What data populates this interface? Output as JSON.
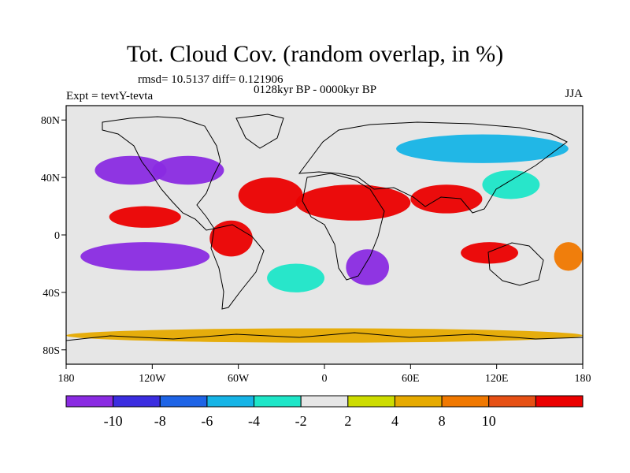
{
  "title": "Tot. Cloud Cov. (random overlap, in %)",
  "stats": "rmsd= 10.5137 diff= 0.121906",
  "period": "0128kyr BP - 0000kyr BP",
  "experiment": "Expt = tevtY-tevta",
  "season": "JJA",
  "y_ticks": [
    {
      "label": "80N",
      "lat": 80
    },
    {
      "label": "40N",
      "lat": 40
    },
    {
      "label": "0",
      "lat": 0
    },
    {
      "label": "40S",
      "lat": -40
    },
    {
      "label": "80S",
      "lat": -80
    }
  ],
  "x_ticks": [
    {
      "label": "180",
      "lon": -180
    },
    {
      "label": "120W",
      "lon": -120
    },
    {
      "label": "60W",
      "lon": -60
    },
    {
      "label": "0",
      "lon": 0
    },
    {
      "label": "60E",
      "lon": 60
    },
    {
      "label": "120E",
      "lon": 120
    },
    {
      "label": "180",
      "lon": 180
    }
  ],
  "colorbar": {
    "colors": [
      "#8a2be2",
      "#3b2de0",
      "#1e64e6",
      "#16b4e6",
      "#1ee6c8",
      "#e6e6e6",
      "#cddc00",
      "#e6aa00",
      "#f07800",
      "#e65014",
      "#eb0000"
    ],
    "labels": [
      "-10",
      "-8",
      "-6",
      "-4",
      "-2",
      "2",
      "4",
      "8",
      "10"
    ]
  },
  "chart_data": {
    "type": "heatmap",
    "variable": "Total cloud cover difference (%)",
    "xlim": [
      -180,
      180
    ],
    "ylim": [
      -90,
      90
    ],
    "levels": [
      -10,
      -8,
      -6,
      -4,
      -2,
      2,
      4,
      8,
      10
    ],
    "regions": [
      {
        "name": "north-africa-arabia",
        "lon": [
          -20,
          60
        ],
        "lat": [
          10,
          35
        ],
        "level": 10
      },
      {
        "name": "south-asia",
        "lon": [
          60,
          110
        ],
        "lat": [
          15,
          35
        ],
        "level": 10
      },
      {
        "name": "north-atlantic-subtropics",
        "lon": [
          -60,
          -15
        ],
        "lat": [
          15,
          40
        ],
        "level": 10
      },
      {
        "name": "east-pacific-north",
        "lon": [
          -150,
          -100
        ],
        "lat": [
          5,
          20
        ],
        "level": 10
      },
      {
        "name": "south-america-north",
        "lon": [
          -80,
          -50
        ],
        "lat": [
          -15,
          10
        ],
        "level": 10
      },
      {
        "name": "east-indian-ocean",
        "lon": [
          95,
          135
        ],
        "lat": [
          -20,
          -5
        ],
        "level": 10
      },
      {
        "name": "south-pacific-west",
        "lon": [
          160,
          180
        ],
        "lat": [
          -25,
          -5
        ],
        "level": 8
      },
      {
        "name": "east-pacific-south",
        "lon": [
          -170,
          -80
        ],
        "lat": [
          -25,
          -5
        ],
        "level": -10
      },
      {
        "name": "north-pacific-east",
        "lon": [
          -160,
          -110
        ],
        "lat": [
          35,
          55
        ],
        "level": -10
      },
      {
        "name": "north-america",
        "lon": [
          -120,
          -70
        ],
        "lat": [
          35,
          55
        ],
        "level": -10
      },
      {
        "name": "southern-africa",
        "lon": [
          15,
          45
        ],
        "lat": [
          -35,
          -10
        ],
        "level": -10
      },
      {
        "name": "siberia",
        "lon": [
          50,
          170
        ],
        "lat": [
          50,
          70
        ],
        "level": -6
      },
      {
        "name": "east-asia",
        "lon": [
          110,
          150
        ],
        "lat": [
          25,
          45
        ],
        "level": -4
      },
      {
        "name": "south-atlantic",
        "lon": [
          -40,
          0
        ],
        "lat": [
          -40,
          -20
        ],
        "level": -4
      },
      {
        "name": "antarctic-coast",
        "lon": [
          -180,
          180
        ],
        "lat": [
          -75,
          -65
        ],
        "level": 4
      }
    ]
  }
}
